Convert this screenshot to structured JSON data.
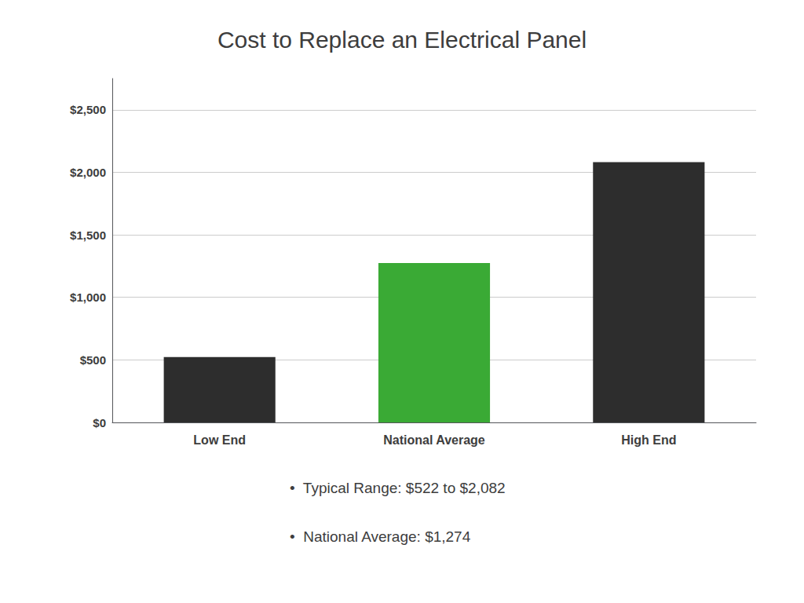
{
  "chart_data": {
    "type": "bar",
    "title": "Cost to Replace an Electrical Panel",
    "categories": [
      "Low End",
      "National Average",
      "High End"
    ],
    "values": [
      522,
      1274,
      2082
    ],
    "colors": [
      "#2d2d2d",
      "#3aaa35",
      "#2d2d2d"
    ],
    "ylim": [
      0,
      2750
    ],
    "yticks": [
      {
        "value": 0,
        "label": "$0"
      },
      {
        "value": 500,
        "label": "$500"
      },
      {
        "value": 1000,
        "label": "$1,000"
      },
      {
        "value": 1500,
        "label": "$1,500"
      },
      {
        "value": 2000,
        "label": "$2,000"
      },
      {
        "value": 2500,
        "label": "$2,500"
      }
    ],
    "grid": true,
    "annotations": [
      "•  Typical Range: $522 to $2,082",
      "•  National Average: $1,274"
    ]
  }
}
